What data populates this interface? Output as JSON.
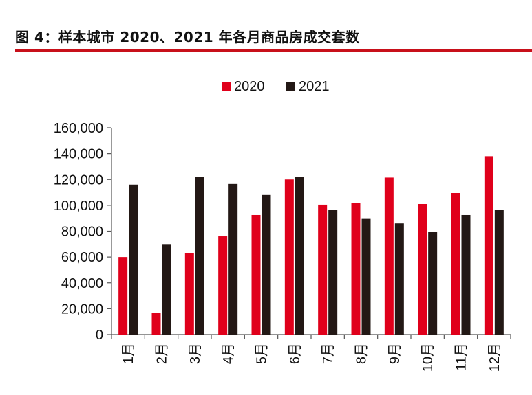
{
  "figure": {
    "title": "图 4：样本城市 2020、2021 年各月商品房成交套数",
    "rule_color": "#c8101a"
  },
  "chart_data": {
    "type": "bar",
    "categories": [
      "1月",
      "2月",
      "3月",
      "4月",
      "5月",
      "6月",
      "7月",
      "8月",
      "9月",
      "10月",
      "11月",
      "12月"
    ],
    "series": [
      {
        "name": "2020",
        "color": "#e0001b",
        "values": [
          60000,
          17000,
          63000,
          76000,
          92500,
          120000,
          100500,
          102000,
          121500,
          101000,
          109500,
          138000
        ]
      },
      {
        "name": "2021",
        "color": "#231815",
        "values": [
          116000,
          70000,
          122000,
          116500,
          108000,
          122000,
          96500,
          89500,
          86000,
          79500,
          92500,
          96500
        ]
      }
    ],
    "ylim": [
      0,
      160000
    ],
    "yticks": [
      "0",
      "20,000",
      "40,000",
      "60,000",
      "80,000",
      "100,000",
      "120,000",
      "140,000",
      "160,000"
    ],
    "legend_position": "top-center",
    "grid": false
  }
}
